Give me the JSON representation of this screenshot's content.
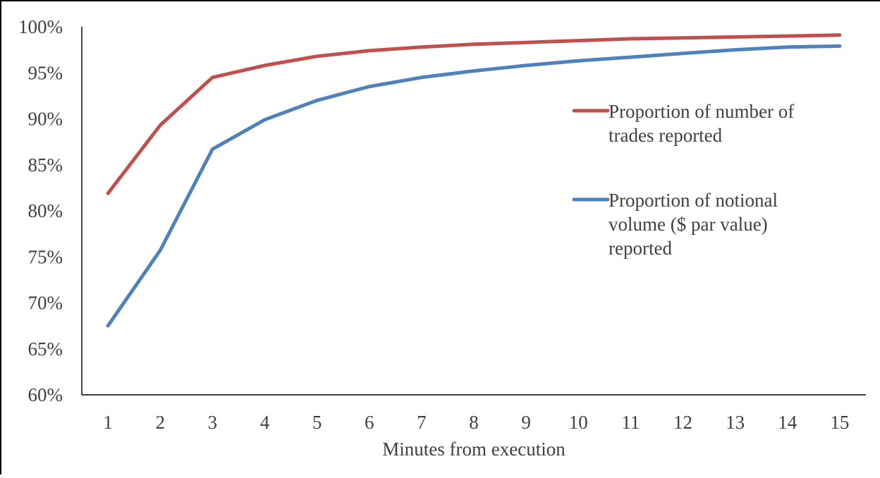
{
  "chart_data": {
    "type": "line",
    "title": "",
    "xlabel": "Minutes from execution",
    "ylabel": "",
    "x": [
      1,
      2,
      3,
      4,
      5,
      6,
      7,
      8,
      9,
      10,
      11,
      12,
      13,
      14,
      15
    ],
    "x_tick_labels": [
      "1",
      "2",
      "3",
      "4",
      "5",
      "6",
      "7",
      "8",
      "9",
      "10",
      "11",
      "12",
      "13",
      "14",
      "15"
    ],
    "ylim": [
      0.6,
      1.0
    ],
    "y_ticks": [
      0.6,
      0.65,
      0.7,
      0.75,
      0.8,
      0.85,
      0.9,
      0.95,
      1.0
    ],
    "y_tick_labels": [
      "60%",
      "65%",
      "70%",
      "75%",
      "80%",
      "85%",
      "90%",
      "95%",
      "100%"
    ],
    "grid": false,
    "legend_position": "right",
    "series": [
      {
        "name": "Proportion of number of trades reported",
        "legend_lines": [
          "Proportion of number of",
          "trades reported"
        ],
        "color": "#c0504d",
        "values": [
          0.819,
          0.893,
          0.945,
          0.958,
          0.968,
          0.974,
          0.978,
          0.981,
          0.983,
          0.985,
          0.987,
          0.988,
          0.989,
          0.99,
          0.991
        ]
      },
      {
        "name": "Proportion of notional volume ($ par value) reported",
        "legend_lines": [
          "Proportion of notional",
          "volume ($ par value)",
          "reported"
        ],
        "color": "#4f81bd",
        "values": [
          0.675,
          0.757,
          0.867,
          0.899,
          0.92,
          0.935,
          0.945,
          0.952,
          0.958,
          0.963,
          0.967,
          0.971,
          0.975,
          0.978,
          0.979
        ]
      }
    ]
  }
}
